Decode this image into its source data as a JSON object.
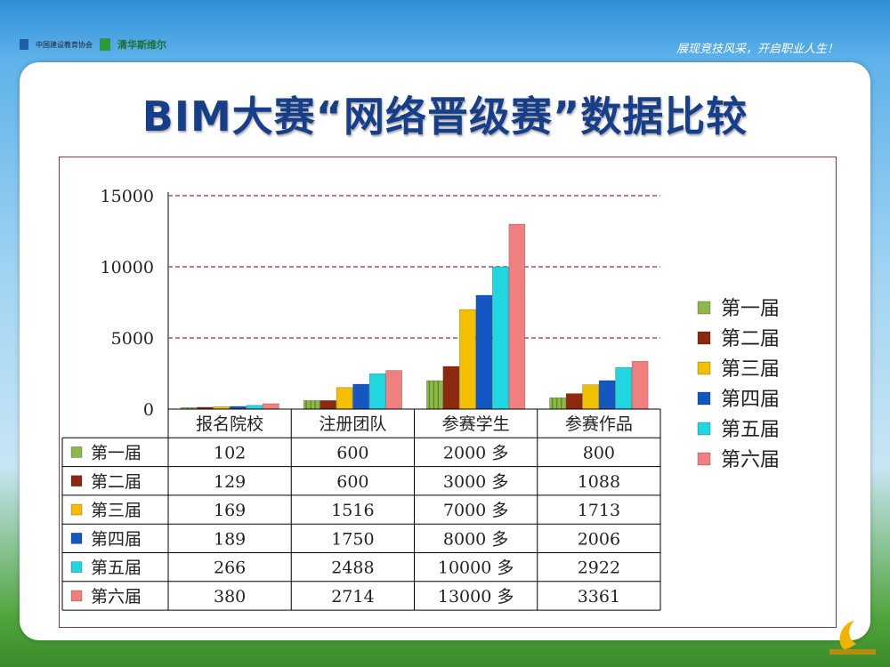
{
  "header": {
    "logo_left_text": "中国建设教育协会",
    "logo_right_text": "清华斯维尔",
    "slogan": "展现竞技风采，开启职业人生！"
  },
  "title": "BIM大赛“网络晋级赛”数据比较",
  "colors": {
    "title": "#173e88",
    "series": [
      "#8fb84a",
      "#8b2a0e",
      "#f2c000",
      "#1557c0",
      "#20d6e0",
      "#f08080"
    ],
    "grid": "#8a3a3a"
  },
  "chart_data": {
    "type": "bar",
    "categories": [
      "报名院校",
      "注册团队",
      "参赛学生",
      "参赛作品"
    ],
    "series": [
      {
        "name": "第一届",
        "values": [
          102,
          600,
          2000,
          800
        ]
      },
      {
        "name": "第二届",
        "values": [
          129,
          600,
          3000,
          1088
        ]
      },
      {
        "name": "第三届",
        "values": [
          169,
          1516,
          7000,
          1713
        ]
      },
      {
        "name": "第四届",
        "values": [
          189,
          1750,
          8000,
          2006
        ]
      },
      {
        "name": "第五届",
        "values": [
          266,
          2488,
          10000,
          2922
        ]
      },
      {
        "name": "第六届",
        "values": [
          380,
          2714,
          13000,
          3361
        ]
      }
    ],
    "table_cells": [
      [
        "102",
        "600",
        "2000 多",
        "800"
      ],
      [
        "129",
        "600",
        "3000 多",
        "1088"
      ],
      [
        "169",
        "1516",
        "7000 多",
        "1713"
      ],
      [
        "189",
        "1750",
        "8000 多",
        "2006"
      ],
      [
        "266",
        "2488",
        "10000 多",
        "2922"
      ],
      [
        "380",
        "2714",
        "13000 多",
        "3361"
      ]
    ],
    "yticks": [
      "0",
      "5000",
      "10000",
      "15000"
    ],
    "ylim": [
      0,
      15000
    ],
    "grid": true,
    "legend_position": "right",
    "data_table": true
  }
}
